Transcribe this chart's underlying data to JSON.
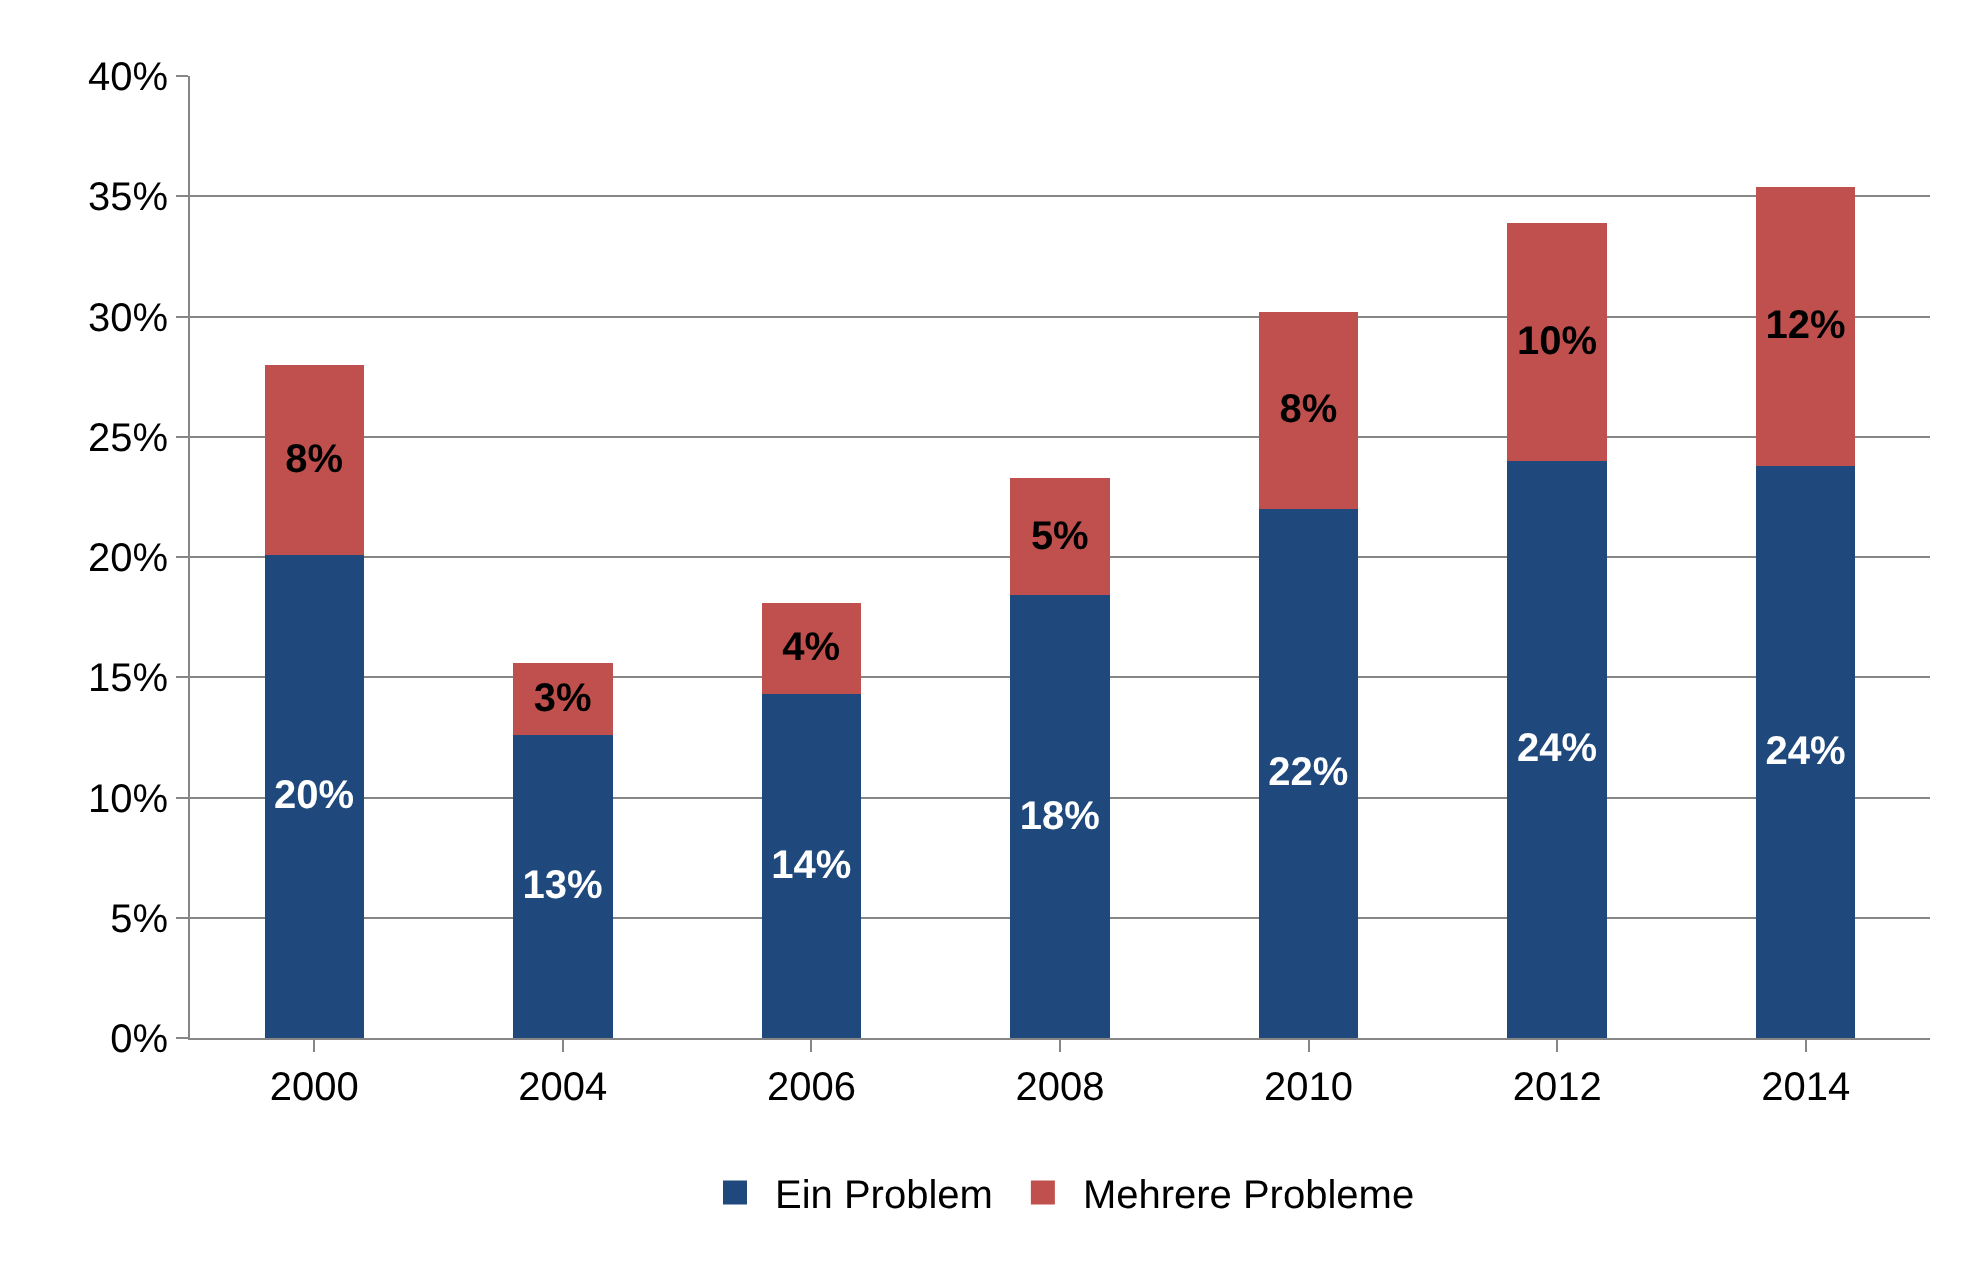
{
  "chart_data": {
    "type": "bar",
    "stacked": true,
    "categories": [
      "2000",
      "2004",
      "2006",
      "2008",
      "2010",
      "2012",
      "2014"
    ],
    "series": [
      {
        "name": "Ein Problem",
        "color": "#1f497d",
        "values": [
          20.1,
          12.6,
          14.3,
          18.4,
          22.0,
          24.0,
          23.8
        ],
        "value_labels": [
          "20%",
          "13%",
          "14%",
          "18%",
          "22%",
          "24%",
          "24%"
        ]
      },
      {
        "name": "Mehrere Probleme",
        "color": "#c0504d",
        "values": [
          7.9,
          3.0,
          3.8,
          4.9,
          8.2,
          9.9,
          11.6
        ],
        "value_labels": [
          "8%",
          "3%",
          "4%",
          "5%",
          "8%",
          "10%",
          "12%"
        ]
      }
    ],
    "ylim": [
      0,
      40
    ],
    "yticks": [
      {
        "value": 0,
        "label": "0%"
      },
      {
        "value": 5,
        "label": "5%"
      },
      {
        "value": 10,
        "label": "10%"
      },
      {
        "value": 15,
        "label": "15%"
      },
      {
        "value": 20,
        "label": "20%"
      },
      {
        "value": 25,
        "label": "25%"
      },
      {
        "value": 30,
        "label": "30%"
      },
      {
        "value": 35,
        "label": "35%"
      },
      {
        "value": 40,
        "label": "40%"
      }
    ],
    "grid": "y",
    "legend": "bottom"
  }
}
